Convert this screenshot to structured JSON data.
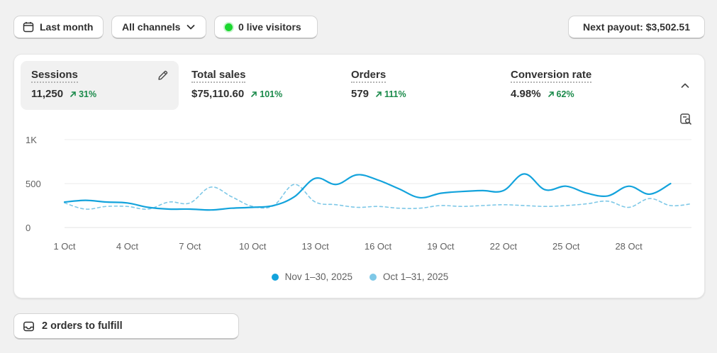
{
  "toolbar": {
    "date_label": "Last month",
    "channels_label": "All channels",
    "live_label": "0 live visitors",
    "payout_label": "Next payout: $3,502.51"
  },
  "metrics": [
    {
      "title": "Sessions",
      "value": "11,250",
      "change": "31%"
    },
    {
      "title": "Total sales",
      "value": "$75,110.60",
      "change": "101%"
    },
    {
      "title": "Orders",
      "value": "579",
      "change": "111%"
    },
    {
      "title": "Conversion rate",
      "value": "4.98%",
      "change": "62%"
    }
  ],
  "colors": {
    "current_series": "#13a3dc",
    "previous_series": "#7ec8e7",
    "positive_change": "#1a8a4a",
    "live_dot": "#1bd72f"
  },
  "icons": {
    "date": "calendar-icon",
    "channels": "chevron-down-icon",
    "edit": "pencil-icon",
    "collapse": "chevron-up-icon",
    "explore": "magnify-report-icon",
    "fulfill": "inbox-icon"
  },
  "chart_data": {
    "type": "line",
    "x": [
      "1 Oct",
      "2 Oct",
      "3 Oct",
      "4 Oct",
      "5 Oct",
      "6 Oct",
      "7 Oct",
      "8 Oct",
      "9 Oct",
      "10 Oct",
      "11 Oct",
      "12 Oct",
      "13 Oct",
      "14 Oct",
      "15 Oct",
      "16 Oct",
      "17 Oct",
      "18 Oct",
      "19 Oct",
      "20 Oct",
      "21 Oct",
      "22 Oct",
      "23 Oct",
      "24 Oct",
      "25 Oct",
      "26 Oct",
      "27 Oct",
      "28 Oct",
      "29 Oct",
      "30 Oct",
      "31 Oct"
    ],
    "tick_labels": [
      "1 Oct",
      "4 Oct",
      "7 Oct",
      "10 Oct",
      "13 Oct",
      "16 Oct",
      "19 Oct",
      "22 Oct",
      "25 Oct",
      "28 Oct"
    ],
    "y_ticks": [
      "0",
      "500",
      "1K"
    ],
    "ylim": [
      0,
      1000
    ],
    "grid": true,
    "legend_position": "bottom",
    "series": [
      {
        "name": "Nov 1–30, 2025",
        "style": "solid",
        "values": [
          290,
          310,
          290,
          280,
          230,
          210,
          210,
          200,
          220,
          230,
          250,
          350,
          560,
          490,
          600,
          540,
          440,
          340,
          390,
          410,
          420,
          420,
          610,
          430,
          470,
          390,
          360,
          470,
          380,
          500,
          null
        ]
      },
      {
        "name": "Oct 1–31, 2025",
        "style": "dashed",
        "values": [
          280,
          210,
          240,
          240,
          210,
          290,
          280,
          460,
          350,
          240,
          250,
          490,
          290,
          260,
          230,
          240,
          220,
          220,
          250,
          240,
          250,
          260,
          250,
          240,
          250,
          270,
          300,
          230,
          330,
          250,
          270
        ]
      }
    ]
  },
  "fulfill": {
    "label": "2 orders to fulfill"
  }
}
